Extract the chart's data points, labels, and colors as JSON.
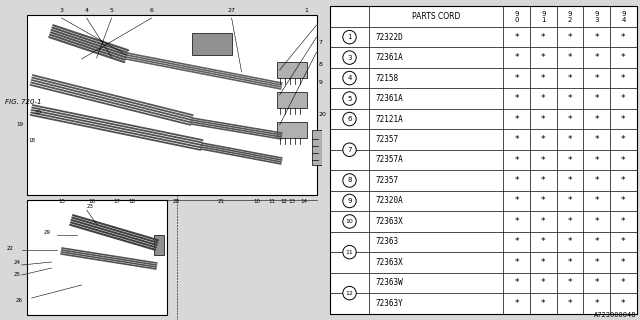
{
  "bg_color": "#d8d8d8",
  "diagram_bg": "#d8d8d8",
  "rows": [
    [
      "1",
      "72322D",
      "*",
      "*",
      "*",
      "*",
      "*"
    ],
    [
      "3",
      "72361A",
      "*",
      "*",
      "*",
      "*",
      "*"
    ],
    [
      "4",
      "72158",
      "*",
      "*",
      "*",
      "*",
      "*"
    ],
    [
      "5",
      "72361A",
      "*",
      "*",
      "*",
      "*",
      "*"
    ],
    [
      "6",
      "72121A",
      "*",
      "*",
      "*",
      "*",
      "*"
    ],
    [
      "7",
      "72357",
      "*",
      "*",
      "*",
      "*",
      "*"
    ],
    [
      "7",
      "72357A",
      "*",
      "*",
      "*",
      "*",
      "*"
    ],
    [
      "8",
      "72357",
      "*",
      "*",
      "*",
      "*",
      "*"
    ],
    [
      "9",
      "72320A",
      "*",
      "*",
      "*",
      "*",
      "*"
    ],
    [
      "10",
      "72363X",
      "*",
      "*",
      "*",
      "*",
      "*"
    ],
    [
      "11",
      "72363",
      "*",
      "*",
      "*",
      "*",
      "*"
    ],
    [
      "11",
      "72363X",
      "*",
      "*",
      "*",
      "*",
      "*"
    ],
    [
      "12",
      "72363W",
      "*",
      "*",
      "*",
      "*",
      "*"
    ],
    [
      "12",
      "72363Y",
      "*",
      "*",
      "*",
      "*",
      "*"
    ]
  ],
  "years": [
    "9\n0",
    "9\n1",
    "9\n2",
    "9\n3",
    "9\n4"
  ],
  "circled_refs": [
    "1",
    "3",
    "4",
    "5",
    "6",
    "7",
    "8",
    "9",
    "10",
    "11",
    "12"
  ],
  "footnote": "A723000048",
  "fig_label": "FIG. 720-1"
}
